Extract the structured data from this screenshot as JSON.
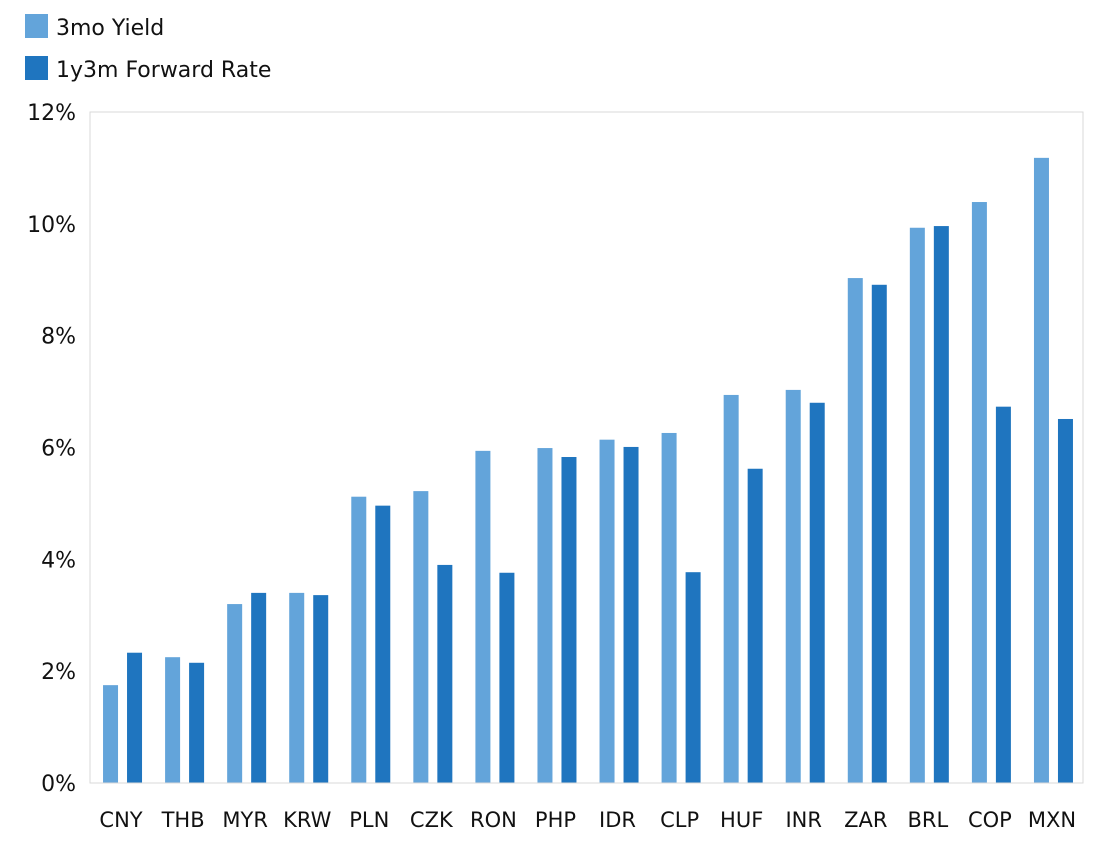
{
  "chart_data": {
    "type": "bar",
    "title": "",
    "xlabel": "",
    "ylabel": "",
    "ylim": [
      0,
      12
    ],
    "yticks": [
      0,
      2,
      4,
      6,
      8,
      10,
      12
    ],
    "ytick_labels": [
      "0%",
      "2%",
      "4%",
      "6%",
      "8%",
      "10%",
      "12%"
    ],
    "grid": false,
    "legend_position": "top-left",
    "categories": [
      "CNY",
      "THB",
      "MYR",
      "KRW",
      "PLN",
      "CZK",
      "RON",
      "PHP",
      "IDR",
      "CLP",
      "HUF",
      "INR",
      "ZAR",
      "BRL",
      "COP",
      "MXN"
    ],
    "series": [
      {
        "name": "3mo Yield",
        "color": "#63a4da",
        "values": [
          1.75,
          2.25,
          3.2,
          3.4,
          5.12,
          5.22,
          5.94,
          5.99,
          6.14,
          6.26,
          6.94,
          7.03,
          9.03,
          9.93,
          10.39,
          11.18
        ]
      },
      {
        "name": "1y3m Forward Rate",
        "color": "#1f75bf",
        "values": [
          2.33,
          2.15,
          3.4,
          3.36,
          4.96,
          3.9,
          3.76,
          5.83,
          6.01,
          3.77,
          5.62,
          6.8,
          8.91,
          9.96,
          6.73,
          6.51
        ]
      }
    ]
  }
}
